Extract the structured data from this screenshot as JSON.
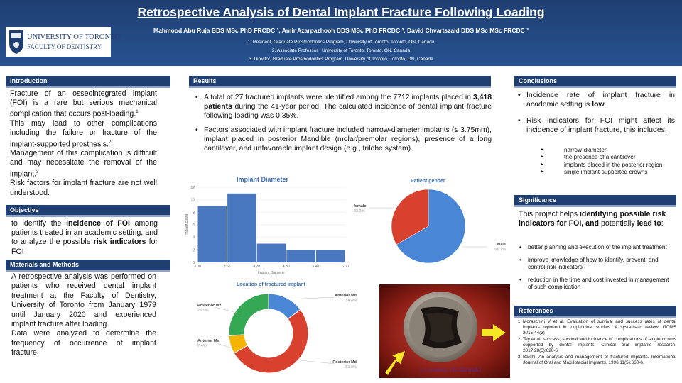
{
  "header": {
    "title": "Retrospective Analysis of Dental Implant Fracture Following Loading",
    "authors": "Mahmood Abu Ruja BDS MSc PhD FRCDC ¹, Amir Azarpazhooh DDS MSc PhD FRCDC ², David Chvartszaid DDS MSc MSc FRCDC ³",
    "affiliations": [
      "1. Resident, Graduate Prosthodontics Program, University of Toronto, Toronto, ON, Canada",
      "2. Associate Professor , University of Toronto, Toronto, ON, Canada",
      "3. Director, Graduate Prosthodontics Program, University of Toronto, Toronto, ON, Canada"
    ],
    "logo": {
      "university": "UNIVERSITY OF TORONTO",
      "faculty": "FACULTY OF DENTISTRY"
    }
  },
  "introduction": {
    "heading": "Introduction",
    "p1": "Fracture of an osseointegrated implant (FOI) is a rare but serious mechanical complication that occurs post-loading.",
    "p1_ref": "1",
    "p2": "This may lead to other complications including the failure or fracture of the implant-supported prosthesis.",
    "p2_ref": "2",
    "p3": "Management of this complication is difficult and may necessitate the removal of the implant.",
    "p3_ref": "3",
    "p4": "Risk factors for implant fracture are not well understood."
  },
  "objective": {
    "heading": "Objective",
    "t1": "to identify the ",
    "b1": "incidence of FOI",
    "t2": " among patients treated in an academic setting, and to analyze the possible ",
    "b2": "risk indicators",
    "t3": " for FOI"
  },
  "methods": {
    "heading": "Materials and Methods",
    "p1": "A retrospective analysis was performed on patients who received dental implant treatment at the Faculty of Dentistry, University of Toronto from January 1979 until January 2020 and experienced implant fracture after loading.",
    "p2": "Data were analyzed to determine the frequency of occurrence of implant fracture."
  },
  "results": {
    "heading": "Results",
    "b1_pre": "A total of 27 fractured implants were identified among the 7712 implants placed in ",
    "b1_bold": "3,418 patients",
    "b1_post": " during the 41-year period. The calculated incidence of dental implant fracture following loading was 0.35%.",
    "b2": "Factors associated with implant fracture included narrow-diameter implants (≤ 3.75mm), implant placed in posterior Mandible (molar/premolar regions), presence of a long cantilever, and unfavorable implant design (e.g., trilobe system)."
  },
  "figures": {
    "photo_caption": "Courtesy Dr. Barmaki",
    "photo_credit_symbol": "©"
  },
  "chart_data": [
    {
      "type": "bar",
      "title": "Implant Diameter",
      "xlabel": "Implant Diameter",
      "ylabel": "Implant count",
      "bin_edges": [
        3.0,
        3.6,
        4.2,
        4.8,
        5.4,
        6.0
      ],
      "x_ticks": [
        "3.00",
        "3.60",
        "4.20",
        "4.80",
        "5.40",
        "6.00"
      ],
      "values": [
        9,
        11,
        3,
        2,
        2
      ],
      "y_ticks": [
        "0",
        "2",
        "4",
        "6",
        "8",
        "10",
        "12"
      ],
      "ylim": [
        0,
        12
      ],
      "bar_color": "#4a78c0"
    },
    {
      "type": "pie",
      "title": "Patient gender",
      "slices": [
        {
          "label": "male",
          "value": 66.7,
          "display": "66.7%",
          "color": "#4a86d6"
        },
        {
          "label": "female",
          "value": 33.3,
          "display": "33.3%",
          "color": "#d9412f"
        }
      ]
    },
    {
      "type": "pie",
      "subtype": "donut",
      "title": "Location of fractured implant",
      "slices": [
        {
          "label": "Anterior Md",
          "value": 14.8,
          "display": "14.8%",
          "color": "#4a86d6"
        },
        {
          "label": "Posterior Md",
          "value": 51.9,
          "display": "51.9%",
          "color": "#d9412f"
        },
        {
          "label": "Anterior Mx",
          "value": 7.4,
          "display": "7.4%",
          "color": "#f4b400"
        },
        {
          "label": "Posterior Mx",
          "value": 25.9,
          "display": "25.9%",
          "color": "#34a853"
        }
      ]
    }
  ],
  "conclusions": {
    "heading": "Conclusions",
    "c1_pre": "Incidence rate of implant fracture in academic setting is ",
    "c1_bold": "low",
    "c2": "Risk indicators for FOI might affect its incidence of implant fracture, this includes:",
    "sub": [
      "narrow-diameter",
      " the presence of a cantilever",
      "implants placed in the posterior region",
      "single implant-supported crowns"
    ]
  },
  "significance": {
    "heading": "Significance",
    "intro_pre": "This project helps ",
    "intro_bold": "identifying possible risk indicators for FOI, and",
    "intro_mid": " potentially ",
    "intro_bold2": "lead to",
    "intro_post": ":",
    "items": [
      "better planning and execution of the implant treatment",
      "improve knowledge of how to identify, prevent, and control risk indicators",
      "reduction in the time and cost invested in management of such complication"
    ]
  },
  "references": {
    "heading": "References",
    "items": [
      "Moraschini V et al. Evaluation of survival and success rates of dental implants reported in longitudinal studies: A systematic review. IJOMS 2015;44(3)",
      "Tey et al. success, survival and incidence of complications of single crowns supported by dental implants. Clinical oral implants research. 2017;28(5):620-5",
      "Balshi. An analysis and management of fractured implants. International Journal of Oral and Maxillofacial Implants. 1996;11(5):660-6."
    ]
  },
  "colors": {
    "header_bg": "#1f3f72",
    "section_header_bg": "#1f3f72",
    "section_underline": "#8ea3c6",
    "figure_title": "#3f6fb8",
    "arrow_yellow": "#f5e626"
  }
}
